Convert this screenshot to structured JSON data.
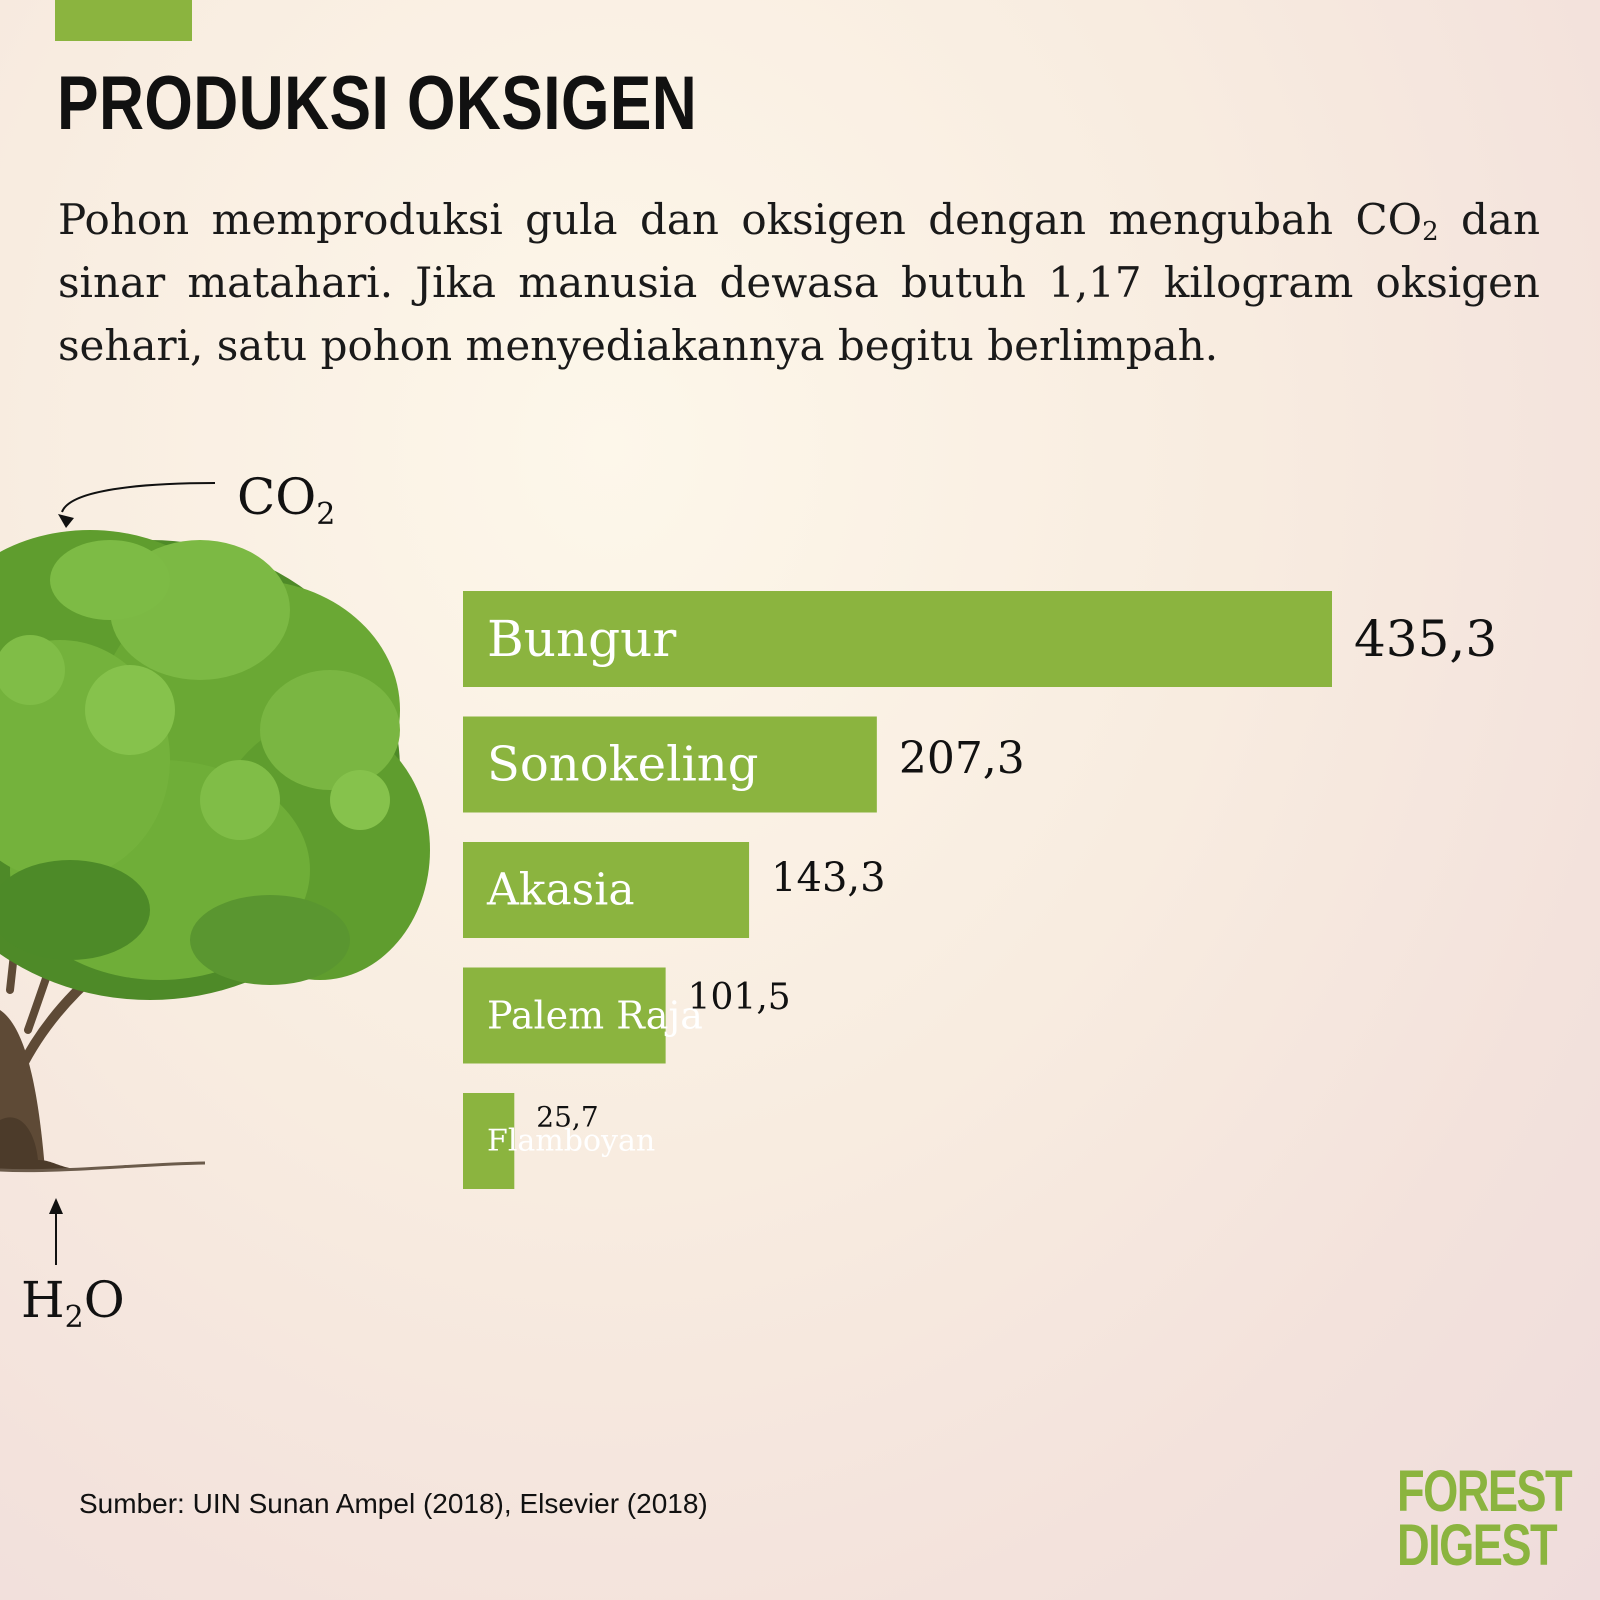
{
  "title": "PRODUKSI OKSIGEN",
  "intro": {
    "before": "Pohon memproduksi gula dan oksigen dengan mengubah CO",
    "sub": "2",
    "after": " dan sinar matahari. Jika manusia dewasa butuh 1,17 kilogram oksigen sehari, satu pohon menyediakannya begitu berlimpah."
  },
  "labels": {
    "co2_main": "CO",
    "co2_sub": "2",
    "h2o_h": "H",
    "h2o_sub": "2",
    "h2o_o": "O"
  },
  "chart_data": {
    "type": "bar",
    "orientation": "horizontal",
    "categories": [
      "Bungur",
      "Sonokeling",
      "Akasia",
      "Palem Raja",
      "Flamboyan"
    ],
    "values": [
      435.3,
      207.3,
      143.3,
      101.5,
      25.7
    ],
    "value_labels": [
      "435,3",
      "207,3",
      "143,3",
      "101,5",
      "25,7"
    ],
    "bar_color": "#8bb43f",
    "title": "",
    "xlabel": "",
    "ylabel": ""
  },
  "source": "Sumber: UIN Sunan Ampel (2018), Elsevier (2018)",
  "logo": {
    "line1": "FOREST",
    "line2": "DIGEST",
    "color": "#8bb43f"
  }
}
